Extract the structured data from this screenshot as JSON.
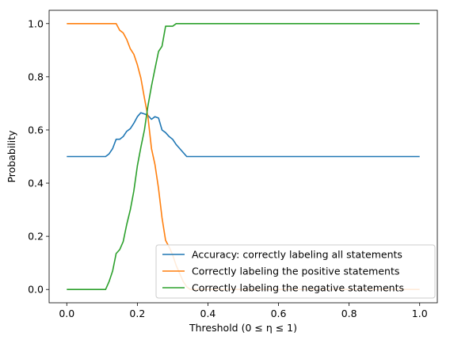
{
  "chart_data": {
    "type": "line",
    "xlabel": "Threshold (0 ≤ η ≤ 1)",
    "ylabel": "Probability",
    "xlim": [
      -0.05,
      1.05
    ],
    "ylim": [
      -0.05,
      1.05
    ],
    "xticks": [
      0.0,
      0.2,
      0.4,
      0.6,
      0.8,
      1.0
    ],
    "xtick_labels": [
      "0.0",
      "0.2",
      "0.4",
      "0.6",
      "0.8",
      "1.0"
    ],
    "yticks": [
      0.0,
      0.2,
      0.4,
      0.6,
      0.8,
      1.0
    ],
    "ytick_labels": [
      "0.0",
      "0.2",
      "0.4",
      "0.6",
      "0.8",
      "1.0"
    ],
    "grid": false,
    "legend_position": "lower-right",
    "series": [
      {
        "name": "Accuracy: correctly labeling all statements",
        "color": "#1f77b4",
        "x": [
          0,
          0.11,
          0.12,
          0.13,
          0.14,
          0.15,
          0.16,
          0.17,
          0.18,
          0.19,
          0.2,
          0.21,
          0.22,
          0.23,
          0.24,
          0.25,
          0.26,
          0.27,
          0.28,
          0.29,
          0.3,
          0.31,
          0.32,
          0.33,
          0.34,
          0.35,
          1.0
        ],
        "y": [
          0.5,
          0.5,
          0.51,
          0.53,
          0.565,
          0.565,
          0.575,
          0.595,
          0.605,
          0.625,
          0.65,
          0.665,
          0.66,
          0.655,
          0.64,
          0.65,
          0.645,
          0.6,
          0.59,
          0.575,
          0.565,
          0.545,
          0.53,
          0.515,
          0.5,
          0.5,
          0.5
        ]
      },
      {
        "name": "Correctly labeling the positive statements",
        "color": "#ff7f0e",
        "x": [
          0,
          0.14,
          0.15,
          0.16,
          0.17,
          0.18,
          0.19,
          0.2,
          0.21,
          0.22,
          0.23,
          0.24,
          0.25,
          0.26,
          0.27,
          0.28,
          0.29,
          0.3,
          0.31,
          0.32,
          0.33,
          0.34,
          0.35,
          1.0
        ],
        "y": [
          1.0,
          1.0,
          0.975,
          0.965,
          0.94,
          0.905,
          0.885,
          0.845,
          0.795,
          0.72,
          0.65,
          0.53,
          0.47,
          0.38,
          0.27,
          0.185,
          0.16,
          0.13,
          0.09,
          0.06,
          0.03,
          0.01,
          0.0,
          0.0
        ]
      },
      {
        "name": "Correctly labeling the negative statements",
        "color": "#2ca02c",
        "x": [
          0,
          0.11,
          0.12,
          0.13,
          0.14,
          0.15,
          0.16,
          0.17,
          0.18,
          0.19,
          0.2,
          0.21,
          0.22,
          0.23,
          0.24,
          0.25,
          0.26,
          0.27,
          0.28,
          0.29,
          0.3,
          0.31,
          1.0
        ],
        "y": [
          0.0,
          0.0,
          0.03,
          0.07,
          0.135,
          0.15,
          0.18,
          0.245,
          0.3,
          0.37,
          0.465,
          0.535,
          0.6,
          0.69,
          0.765,
          0.83,
          0.895,
          0.915,
          0.99,
          0.99,
          0.99,
          1.0,
          1.0
        ]
      }
    ]
  }
}
